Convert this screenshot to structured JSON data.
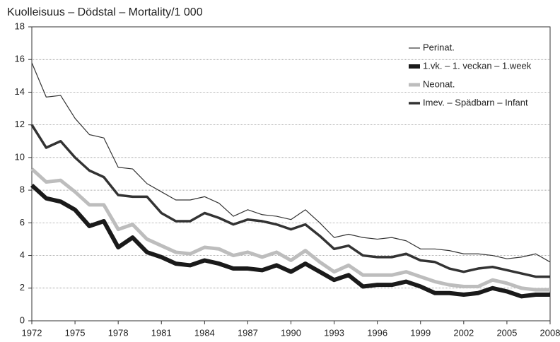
{
  "chart_data": {
    "type": "line",
    "title": "Kuolleisuus – Dödstal – Mortality/1 000",
    "x": [
      1972,
      1973,
      1974,
      1975,
      1976,
      1977,
      1978,
      1979,
      1980,
      1981,
      1982,
      1983,
      1984,
      1985,
      1986,
      1987,
      1988,
      1989,
      1990,
      1991,
      1992,
      1993,
      1994,
      1995,
      1996,
      1997,
      1998,
      1999,
      2000,
      2001,
      2002,
      2003,
      2004,
      2005,
      2006,
      2007,
      2008
    ],
    "series": [
      {
        "name": "Perinat.",
        "color": "#333333",
        "width": 1.2,
        "values": [
          15.8,
          13.7,
          13.8,
          12.4,
          11.4,
          11.2,
          9.4,
          9.3,
          8.4,
          7.9,
          7.4,
          7.4,
          7.6,
          7.2,
          6.4,
          6.8,
          6.5,
          6.4,
          6.2,
          6.8,
          6.0,
          5.1,
          5.3,
          5.1,
          5.0,
          5.1,
          4.9,
          4.4,
          4.4,
          4.3,
          4.1,
          4.1,
          4.0,
          3.8,
          3.9,
          4.1,
          3.6
        ]
      },
      {
        "name": "1.vk. – 1. veckan – 1.week",
        "color": "#1a1a1a",
        "width": 6,
        "values": [
          8.3,
          7.5,
          7.3,
          6.8,
          5.8,
          6.1,
          4.5,
          5.1,
          4.2,
          3.9,
          3.5,
          3.4,
          3.7,
          3.5,
          3.2,
          3.2,
          3.1,
          3.4,
          3.0,
          3.5,
          3.0,
          2.5,
          2.8,
          2.1,
          2.2,
          2.2,
          2.4,
          2.1,
          1.7,
          1.7,
          1.6,
          1.7,
          2.0,
          1.8,
          1.5,
          1.6,
          1.6
        ]
      },
      {
        "name": "Neonat.",
        "color": "#bdbdbd",
        "width": 5,
        "values": [
          9.3,
          8.5,
          8.6,
          7.9,
          7.1,
          7.1,
          5.6,
          5.9,
          5.0,
          4.6,
          4.2,
          4.1,
          4.5,
          4.4,
          4.0,
          4.2,
          3.9,
          4.2,
          3.7,
          4.3,
          3.6,
          3.0,
          3.4,
          2.8,
          2.8,
          2.8,
          3.0,
          2.7,
          2.4,
          2.2,
          2.1,
          2.1,
          2.5,
          2.3,
          2.0,
          1.9,
          1.9
        ]
      },
      {
        "name": "Imev. – Spädbarn – Infant",
        "color": "#333333",
        "width": 3.5,
        "values": [
          12.0,
          10.6,
          11.0,
          10.0,
          9.2,
          8.8,
          7.7,
          7.6,
          7.6,
          6.6,
          6.1,
          6.1,
          6.6,
          6.3,
          5.9,
          6.2,
          6.1,
          5.9,
          5.6,
          5.9,
          5.2,
          4.4,
          4.6,
          4.0,
          3.9,
          3.9,
          4.1,
          3.7,
          3.6,
          3.2,
          3.0,
          3.2,
          3.3,
          3.1,
          2.9,
          2.7,
          2.7
        ]
      }
    ],
    "xlim": [
      1972,
      2008
    ],
    "xticks": [
      1972,
      1975,
      1978,
      1981,
      1984,
      1987,
      1990,
      1993,
      1996,
      1999,
      2002,
      2005,
      2008
    ],
    "ylim": [
      0,
      18
    ],
    "yticks": [
      0,
      2,
      4,
      6,
      8,
      10,
      12,
      14,
      16,
      18
    ],
    "grid": true,
    "legend": "upper right"
  }
}
